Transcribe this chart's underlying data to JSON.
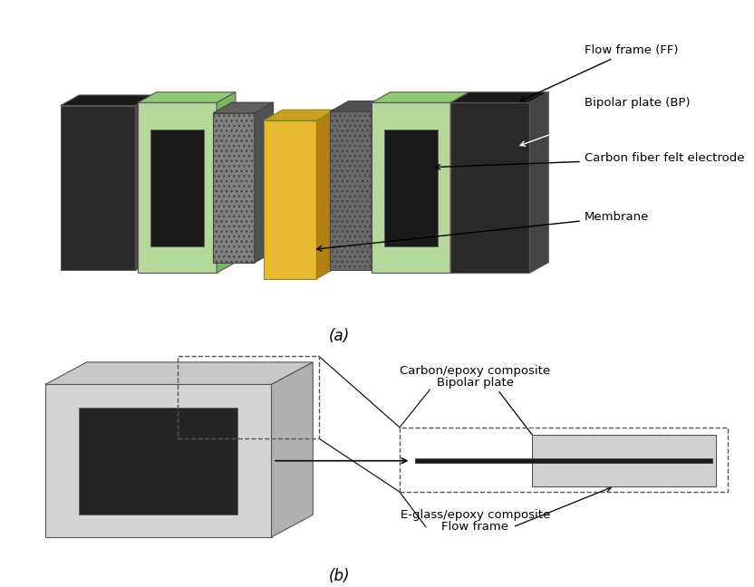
{
  "title_a": "(a)",
  "title_b": "(b)",
  "labels": {
    "flow_frame": "Flow frame (FF)",
    "bipolar_plate": "Bipolar plate (BP)",
    "carbon_fiber": "Carbon fiber felt electrode",
    "membrane": "Membrane",
    "carbon_epoxy_line1": "Carbon/epoxy composite",
    "carbon_epoxy_line2": "Bipolar plate",
    "eglass_line1": "E-glass/epoxy composite",
    "eglass_line2": "Flow frame"
  },
  "colors": {
    "dark_plate": "#2a2a2a",
    "green_frame": "#b5d89a",
    "gray_electrode": "#808080",
    "yellow_membrane": "#e8b830",
    "white_bg": "#ffffff",
    "light_gray": "#d0d0d0",
    "light_gray2": "#c8c8c8",
    "annotation_line": "#000000",
    "dashed_box": "#555555"
  },
  "background_color": "#ffffff"
}
